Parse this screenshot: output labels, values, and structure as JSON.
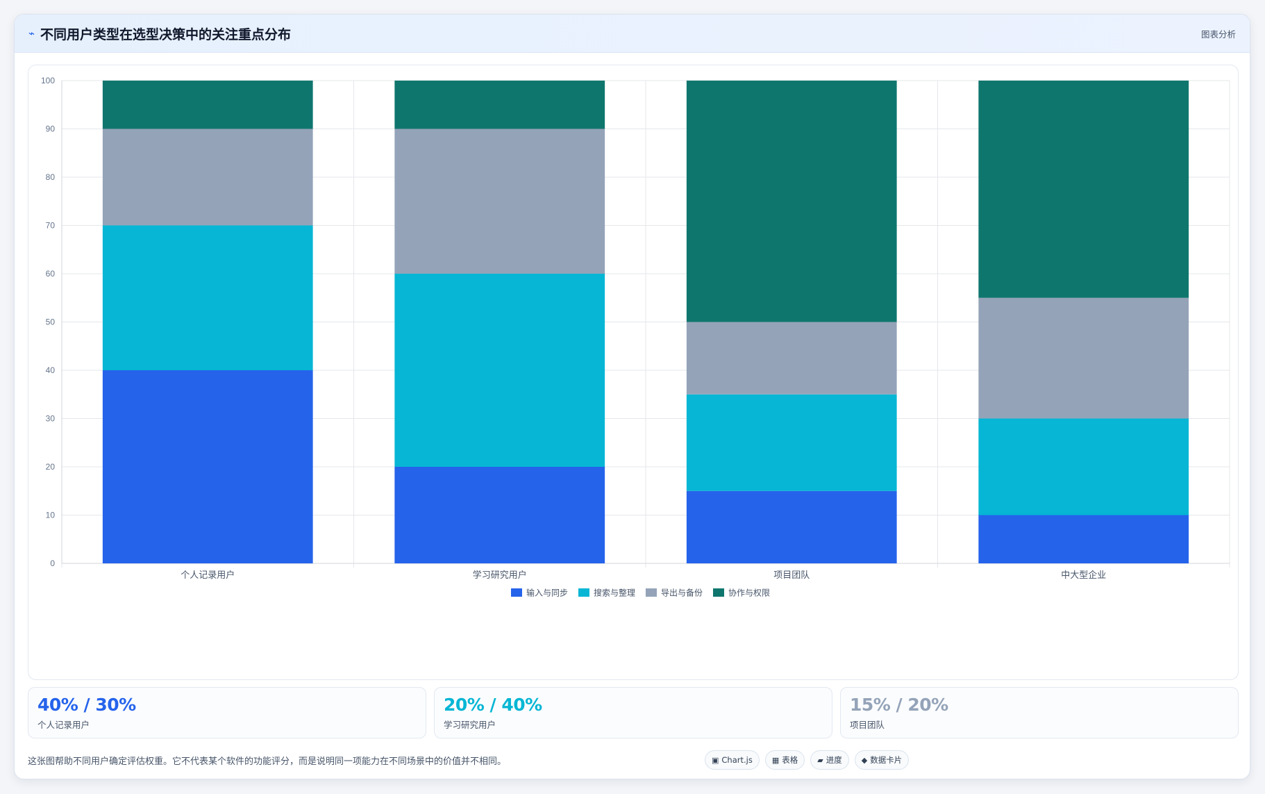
{
  "header": {
    "icon": "trend-icon",
    "title": "不同用户类型在选型决策中的关注重点分布",
    "tag": "图表分析"
  },
  "colors": {
    "series": [
      "#2563eb",
      "#06b6d4",
      "#94a3b8",
      "#0f766e"
    ]
  },
  "chart_data": {
    "type": "bar",
    "stacked": true,
    "categories": [
      "个人记录用户",
      "学习研究用户",
      "项目团队",
      "中大型企业"
    ],
    "series": [
      {
        "name": "输入与同步",
        "values": [
          40,
          20,
          15,
          10
        ]
      },
      {
        "name": "搜索与整理",
        "values": [
          30,
          40,
          20,
          20
        ]
      },
      {
        "name": "导出与备份",
        "values": [
          20,
          30,
          15,
          25
        ]
      },
      {
        "name": "协作与权限",
        "values": [
          10,
          10,
          50,
          45
        ]
      }
    ],
    "ylim": [
      0,
      100
    ],
    "yticks": [
      0,
      10,
      20,
      30,
      40,
      50,
      60,
      70,
      80,
      90,
      100
    ],
    "grid": true,
    "legend": "bottom-center"
  },
  "stats": [
    {
      "value": "40% / 30%",
      "label": "个人记录用户",
      "color": "#2563eb"
    },
    {
      "value": "20% / 40%",
      "label": "学习研究用户",
      "color": "#06b6d4"
    },
    {
      "value": "15% / 20%",
      "label": "项目团队",
      "color": "#94a3b8"
    }
  ],
  "footer": {
    "note": "这张图帮助不同用户确定评估权重。它不代表某个软件的功能评分，而是说明同一项能力在不同场景中的价值并不相同。",
    "pills": [
      {
        "icon": "chart-icon",
        "glyph": "▣",
        "label": "Chart.js"
      },
      {
        "icon": "table-icon",
        "glyph": "▦",
        "label": "表格"
      },
      {
        "icon": "progress-icon",
        "glyph": "▰",
        "label": "进度"
      },
      {
        "icon": "card-icon",
        "glyph": "◆",
        "label": "数据卡片"
      }
    ]
  }
}
